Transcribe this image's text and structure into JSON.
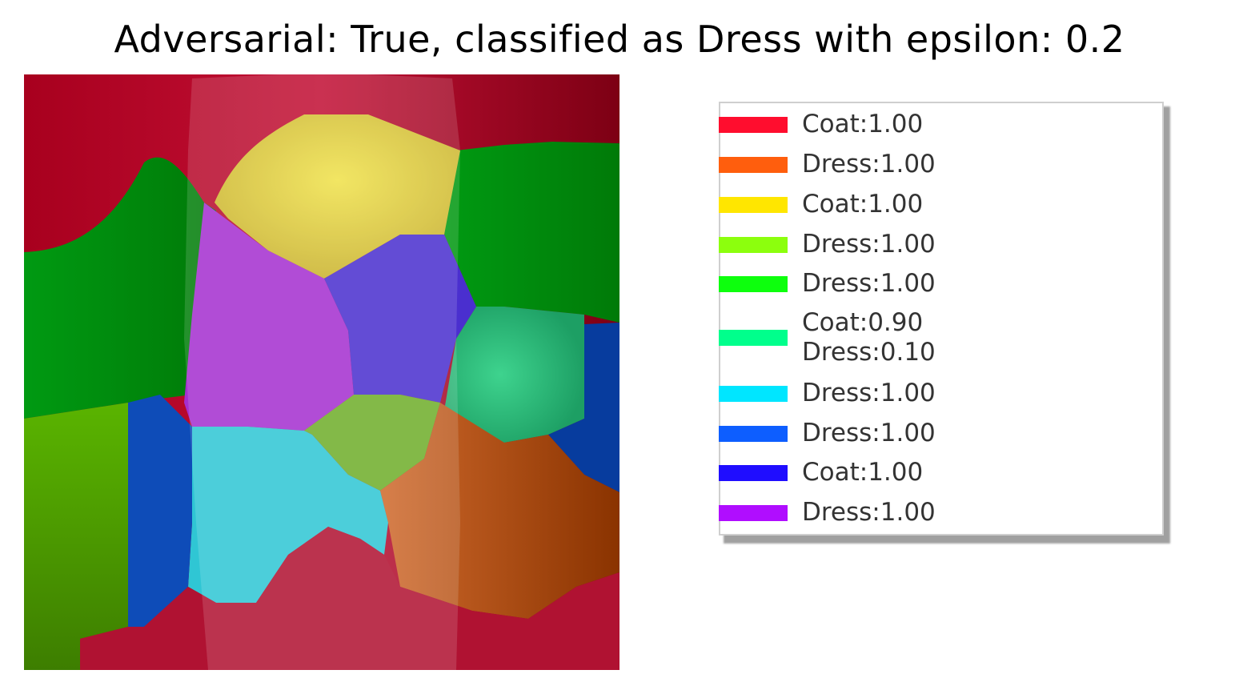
{
  "title": "Adversarial: True, classified as Dress with epsilon: 0.2",
  "legend": {
    "items": [
      {
        "color": "#ff0d2e",
        "lines": [
          "Coat:1.00"
        ]
      },
      {
        "color": "#ff5e0d",
        "lines": [
          "Dress:1.00"
        ]
      },
      {
        "color": "#ffe600",
        "lines": [
          "Coat:1.00"
        ]
      },
      {
        "color": "#8cff0d",
        "lines": [
          "Dress:1.00"
        ]
      },
      {
        "color": "#0dff0d",
        "lines": [
          "Dress:1.00"
        ]
      },
      {
        "color": "#00ff8c",
        "lines": [
          "Coat:0.90",
          "Dress:0.10"
        ]
      },
      {
        "color": "#00e6ff",
        "lines": [
          "Dress:1.00"
        ]
      },
      {
        "color": "#0d5eff",
        "lines": [
          "Dress:1.00"
        ]
      },
      {
        "color": "#1f0dff",
        "lines": [
          "Coat:1.00"
        ]
      },
      {
        "color": "#b00dff",
        "lines": [
          "Dress:1.00"
        ]
      }
    ]
  }
}
